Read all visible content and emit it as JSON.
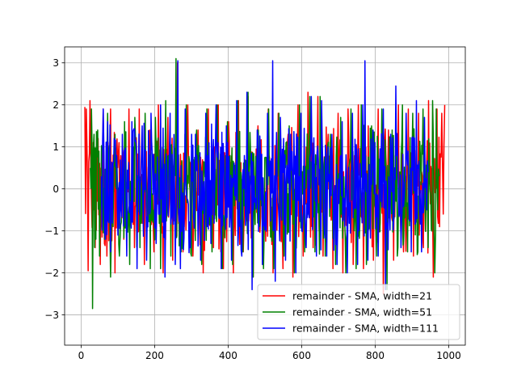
{
  "chart_data": {
    "type": "line",
    "title": "",
    "xlabel": "",
    "ylabel": "",
    "xlim": [
      -45,
      1045
    ],
    "ylim": [
      -3.72,
      3.38
    ],
    "xticks": [
      0,
      200,
      400,
      600,
      800,
      1000
    ],
    "yticks": [
      -3,
      -2,
      -1,
      0,
      1,
      2,
      3
    ],
    "grid": true,
    "legend_position": "lower-right",
    "series": [
      {
        "name": "remainder - SMA, width=21",
        "color": "#ff0000",
        "x_range": [
          10,
          989
        ],
        "points": [
          [
            10,
            1.95
          ],
          [
            14,
            1.9
          ],
          [
            19,
            -1.95
          ],
          [
            24,
            2.1
          ],
          [
            28,
            -0.3
          ],
          [
            33,
            1.1
          ],
          [
            38,
            -1.4
          ],
          [
            46,
            1.2
          ],
          [
            52,
            -1.8
          ],
          [
            60,
            1.9
          ],
          [
            70,
            -1.6
          ],
          [
            80,
            1.9
          ],
          [
            92,
            -2.0
          ],
          [
            103,
            1.1
          ],
          [
            116,
            -1.2
          ],
          [
            130,
            1.9
          ],
          [
            145,
            -1.4
          ],
          [
            158,
            1.9
          ],
          [
            172,
            -1.8
          ],
          [
            186,
            1.4
          ],
          [
            198,
            -1.5
          ],
          [
            210,
            2.0
          ],
          [
            223,
            -2.0
          ],
          [
            236,
            1.7
          ],
          [
            249,
            -1.7
          ],
          [
            262,
            3.0
          ],
          [
            277,
            -1.5
          ],
          [
            290,
            2.0
          ],
          [
            304,
            -1.6
          ],
          [
            318,
            1.4
          ],
          [
            332,
            -2.0
          ],
          [
            346,
            1.9
          ],
          [
            360,
            -1.4
          ],
          [
            373,
            2.0
          ],
          [
            387,
            -1.9
          ],
          [
            401,
            1.6
          ],
          [
            414,
            -2.0
          ],
          [
            428,
            2.1
          ],
          [
            441,
            -1.5
          ],
          [
            454,
            2.2
          ],
          [
            468,
            -2.1
          ],
          [
            481,
            1.5
          ],
          [
            495,
            -1.8
          ],
          [
            509,
            1.9
          ],
          [
            522,
            -2.0
          ],
          [
            536,
            1.8
          ],
          [
            549,
            -1.9
          ],
          [
            563,
            1.3
          ],
          [
            576,
            -2.1
          ],
          [
            590,
            2.0
          ],
          [
            604,
            -1.6
          ],
          [
            617,
            2.3
          ],
          [
            631,
            -1.4
          ],
          [
            644,
            2.2
          ],
          [
            658,
            -1.6
          ],
          [
            672,
            1.3
          ],
          [
            685,
            -1.9
          ],
          [
            699,
            1.8
          ],
          [
            712,
            -2.0
          ],
          [
            726,
            1.9
          ],
          [
            740,
            -1.8
          ],
          [
            754,
            2.0
          ],
          [
            768,
            -1.9
          ],
          [
            781,
            1.5
          ],
          [
            795,
            -1.7
          ],
          [
            808,
            1.9
          ],
          [
            822,
            -2.5
          ],
          [
            836,
            1.4
          ],
          [
            850,
            -1.7
          ],
          [
            863,
            2.0
          ],
          [
            877,
            -1.5
          ],
          [
            890,
            1.9
          ],
          [
            904,
            -1.6
          ],
          [
            918,
            1.8
          ],
          [
            931,
            -1.4
          ],
          [
            945,
            2.1
          ],
          [
            958,
            -2.1
          ],
          [
            968,
            1.9
          ],
          [
            975,
            -0.9
          ],
          [
            981,
            1.8
          ],
          [
            985,
            -0.6
          ],
          [
            989,
            2.0
          ]
        ]
      },
      {
        "name": "remainder - SMA, width=51",
        "color": "#008000",
        "x_range": [
          25,
          974
        ],
        "points": [
          [
            25,
            0.5
          ],
          [
            28,
            1.9
          ],
          [
            31,
            -2.85
          ],
          [
            35,
            1.3
          ],
          [
            40,
            -1.2
          ],
          [
            45,
            1.4
          ],
          [
            50,
            -1.6
          ],
          [
            57,
            0.9
          ],
          [
            64,
            -1.2
          ],
          [
            72,
            1.8
          ],
          [
            80,
            -2.1
          ],
          [
            92,
            1.3
          ],
          [
            104,
            -1.6
          ],
          [
            118,
            1.6
          ],
          [
            132,
            -1.8
          ],
          [
            146,
            1.7
          ],
          [
            160,
            -1.4
          ],
          [
            174,
            1.8
          ],
          [
            188,
            -1.9
          ],
          [
            202,
            1.7
          ],
          [
            216,
            -1.9
          ],
          [
            230,
            2.1
          ],
          [
            244,
            -1.6
          ],
          [
            258,
            3.1
          ],
          [
            272,
            -1.5
          ],
          [
            286,
            2.0
          ],
          [
            300,
            -1.6
          ],
          [
            314,
            1.4
          ],
          [
            328,
            -1.8
          ],
          [
            342,
            1.9
          ],
          [
            356,
            -1.5
          ],
          [
            370,
            2.0
          ],
          [
            384,
            -1.9
          ],
          [
            398,
            1.6
          ],
          [
            412,
            -1.8
          ],
          [
            426,
            2.1
          ],
          [
            440,
            -1.5
          ],
          [
            454,
            2.3
          ],
          [
            468,
            -2.1
          ],
          [
            482,
            1.4
          ],
          [
            496,
            -1.9
          ],
          [
            510,
            1.9
          ],
          [
            524,
            -1.9
          ],
          [
            538,
            1.8
          ],
          [
            552,
            -1.6
          ],
          [
            566,
            1.5
          ],
          [
            580,
            -2.0
          ],
          [
            594,
            2.0
          ],
          [
            608,
            -1.5
          ],
          [
            622,
            2.2
          ],
          [
            636,
            -1.5
          ],
          [
            650,
            2.2
          ],
          [
            664,
            -1.6
          ],
          [
            678,
            1.3
          ],
          [
            692,
            -1.8
          ],
          [
            706,
            1.7
          ],
          [
            720,
            -2.0
          ],
          [
            734,
            1.9
          ],
          [
            748,
            -1.9
          ],
          [
            762,
            2.0
          ],
          [
            776,
            -1.8
          ],
          [
            790,
            1.5
          ],
          [
            804,
            -1.6
          ],
          [
            818,
            1.9
          ],
          [
            832,
            -2.4
          ],
          [
            846,
            1.4
          ],
          [
            860,
            -1.6
          ],
          [
            874,
            2.0
          ],
          [
            888,
            -1.5
          ],
          [
            902,
            1.8
          ],
          [
            916,
            -1.5
          ],
          [
            930,
            1.9
          ],
          [
            944,
            -1.4
          ],
          [
            956,
            2.1
          ],
          [
            962,
            -2.0
          ],
          [
            966,
            1.9
          ],
          [
            970,
            -0.5
          ],
          [
            974,
            0.3
          ]
        ]
      },
      {
        "name": "remainder - SMA, width=111",
        "color": "#0000ff",
        "x_range": [
          55,
          944
        ],
        "points": [
          [
            55,
            0.3
          ],
          [
            60,
            1.9
          ],
          [
            66,
            -1.2
          ],
          [
            72,
            1.6
          ],
          [
            80,
            -1.5
          ],
          [
            90,
            1.2
          ],
          [
            100,
            -1.1
          ],
          [
            112,
            1.3
          ],
          [
            124,
            -1.6
          ],
          [
            138,
            1.6
          ],
          [
            152,
            -1.9
          ],
          [
            166,
            1.5
          ],
          [
            178,
            -1.7
          ],
          [
            190,
            1.8
          ],
          [
            204,
            -1.3
          ],
          [
            216,
            2.0
          ],
          [
            228,
            -2.1
          ],
          [
            242,
            1.8
          ],
          [
            256,
            -1.8
          ],
          [
            263,
            3.05
          ],
          [
            270,
            -1.9
          ],
          [
            283,
            1.9
          ],
          [
            297,
            -1.4
          ],
          [
            311,
            1.3
          ],
          [
            325,
            -1.7
          ],
          [
            339,
            1.8
          ],
          [
            353,
            -1.3
          ],
          [
            367,
            2.0
          ],
          [
            381,
            -1.9
          ],
          [
            395,
            1.5
          ],
          [
            409,
            -1.7
          ],
          [
            423,
            2.1
          ],
          [
            437,
            -1.6
          ],
          [
            451,
            2.3
          ],
          [
            465,
            -2.4
          ],
          [
            479,
            1.4
          ],
          [
            493,
            -1.8
          ],
          [
            507,
            1.8
          ],
          [
            521,
            3.05
          ],
          [
            528,
            -2.2
          ],
          [
            542,
            1.7
          ],
          [
            556,
            -1.7
          ],
          [
            570,
            1.3
          ],
          [
            584,
            -2.0
          ],
          [
            598,
            1.8
          ],
          [
            612,
            -1.4
          ],
          [
            626,
            2.2
          ],
          [
            640,
            -1.6
          ],
          [
            654,
            2.1
          ],
          [
            668,
            -1.6
          ],
          [
            682,
            1.3
          ],
          [
            696,
            -1.8
          ],
          [
            710,
            1.6
          ],
          [
            724,
            -2.0
          ],
          [
            738,
            1.8
          ],
          [
            752,
            -1.8
          ],
          [
            766,
            2.0
          ],
          [
            772,
            3.05
          ],
          [
            780,
            -1.7
          ],
          [
            794,
            1.4
          ],
          [
            808,
            -1.6
          ],
          [
            822,
            1.9
          ],
          [
            828,
            -2.4
          ],
          [
            842,
            1.3
          ],
          [
            856,
            2.45
          ],
          [
            870,
            -1.4
          ],
          [
            884,
            1.8
          ],
          [
            898,
            -1.5
          ],
          [
            912,
            2.1
          ],
          [
            926,
            -1.5
          ],
          [
            934,
            1.7
          ],
          [
            940,
            -0.5
          ],
          [
            944,
            0.4
          ]
        ]
      }
    ]
  }
}
